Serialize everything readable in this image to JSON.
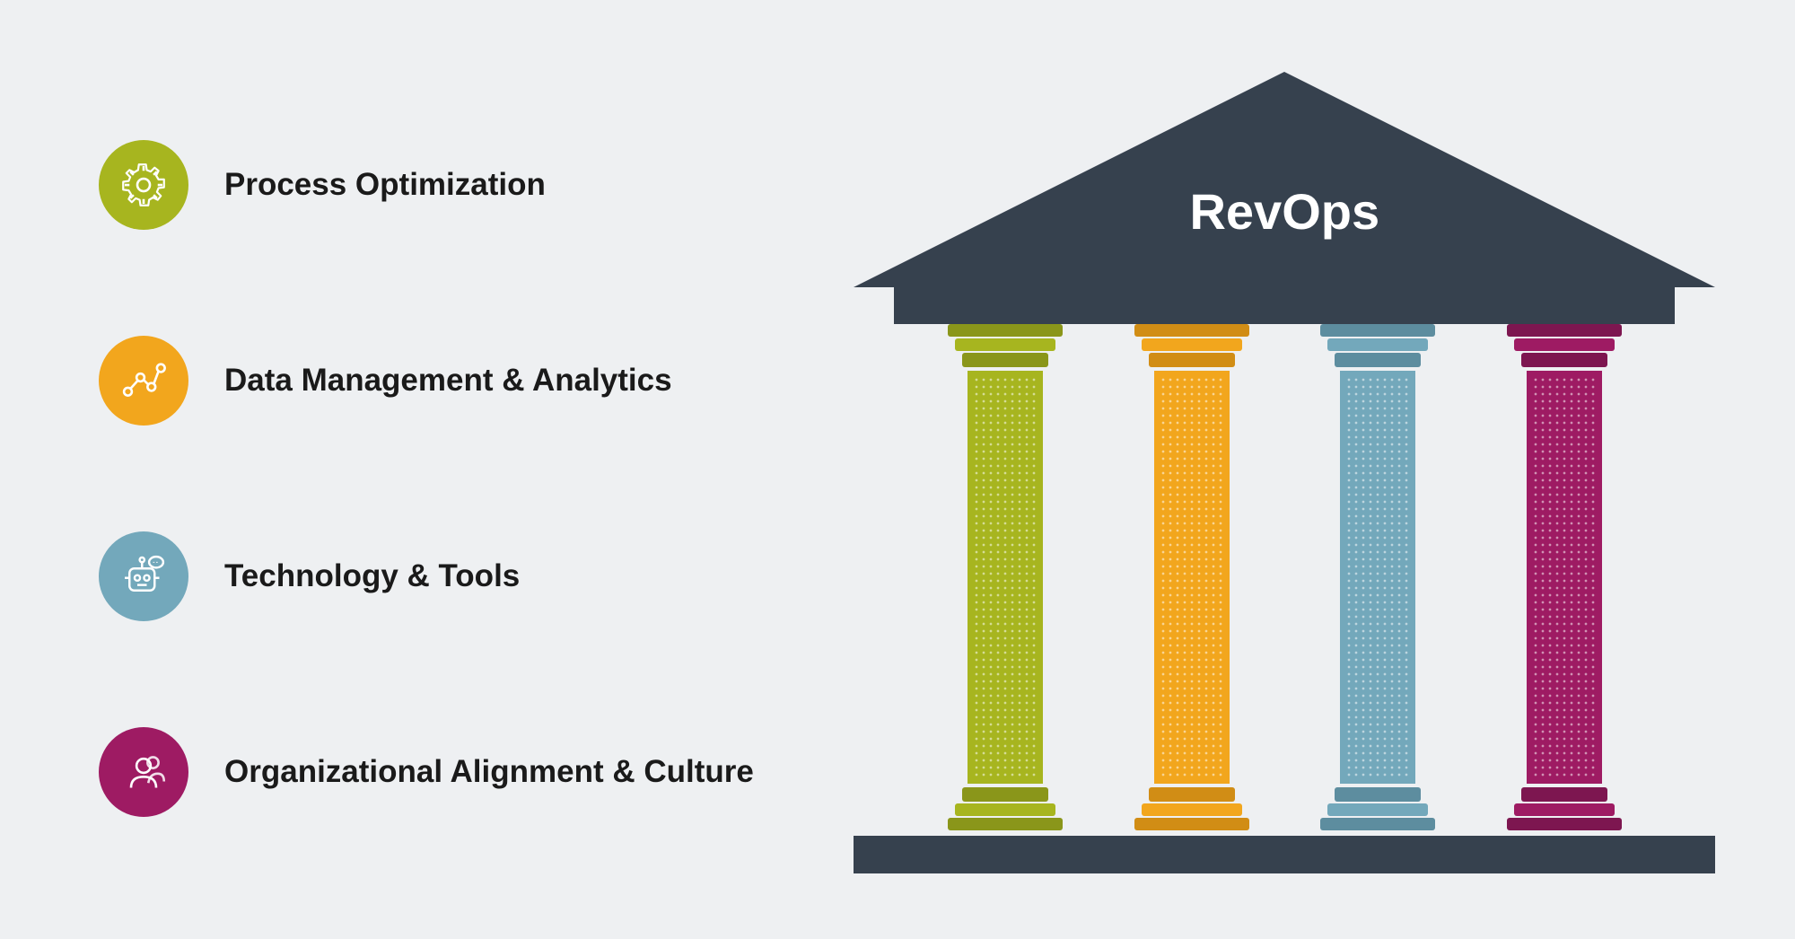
{
  "infographic": {
    "type": "infographic",
    "background_color": "#eef0f2",
    "temple": {
      "title": "RevOps",
      "title_color": "#ffffff",
      "title_fontsize": 56,
      "roof_color": "#36414e",
      "architrave_color": "#36414e",
      "foundation_color": "#36414e",
      "roof_width": 960,
      "roof_height": 240,
      "architrave_width": 870,
      "architrave_height": 44,
      "foundation_width": 960,
      "foundation_height": 44,
      "pillar_height": 570,
      "pillars": [
        {
          "color": "#a7b51f",
          "dark_color": "#8a961a"
        },
        {
          "color": "#f2a61d",
          "dark_color": "#d18d15"
        },
        {
          "color": "#73a8bb",
          "dark_color": "#5d8d9f"
        },
        {
          "color": "#9e1b63",
          "dark_color": "#7d1650"
        }
      ]
    },
    "legend_items": [
      {
        "label": "Process Optimization",
        "icon": "gear",
        "bg_color": "#a7b51f"
      },
      {
        "label": "Data Management & Analytics",
        "icon": "analytics",
        "bg_color": "#f2a61d"
      },
      {
        "label": "Technology & Tools",
        "icon": "robot",
        "bg_color": "#73a8bb"
      },
      {
        "label": "Organizational Alignment & Culture",
        "icon": "people",
        "bg_color": "#9e1b63"
      }
    ],
    "label_fontsize": 35,
    "label_color": "#1a1a1a",
    "icon_circle_size": 100,
    "icon_stroke": "#ffffff"
  }
}
